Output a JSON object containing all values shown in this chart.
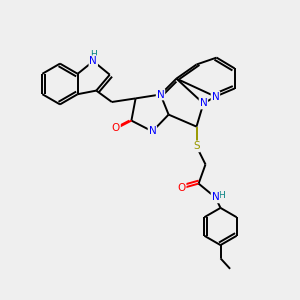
{
  "background_color": "#efefef",
  "atom_colors": {
    "N": "#0000ff",
    "O": "#ff0000",
    "S": "#999900",
    "H_col": "#008080",
    "C": "#000000"
  },
  "figsize": [
    3.0,
    3.0
  ],
  "dpi": 100
}
